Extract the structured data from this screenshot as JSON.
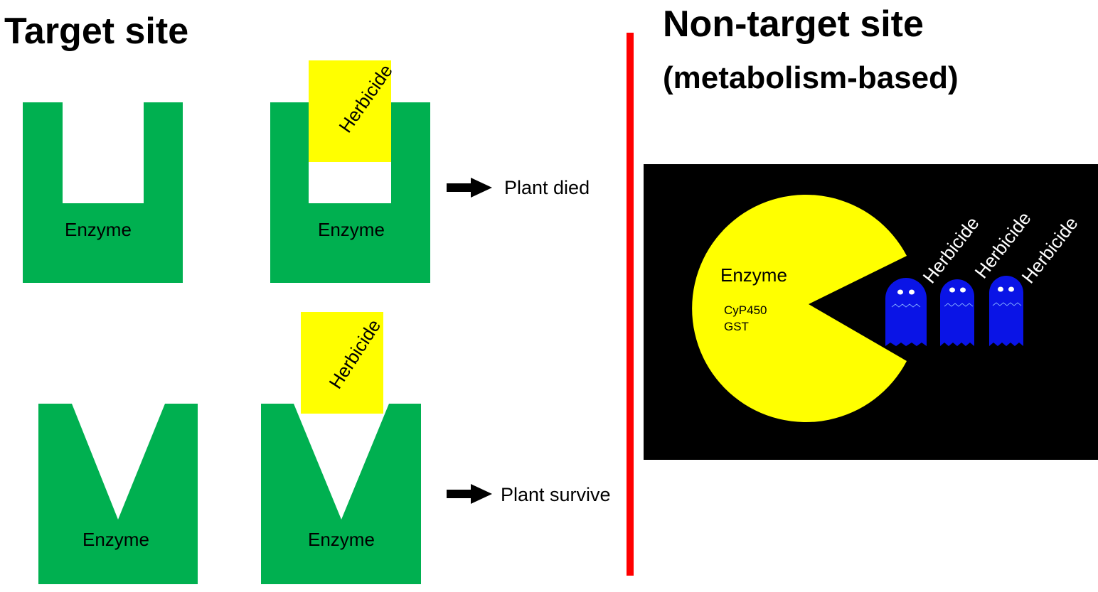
{
  "target_site": {
    "title": "Target site",
    "enzyme_label": "Enzyme",
    "herbicide_label": "Herbicide",
    "outcome_died": "Plant died",
    "outcome_survive": "Plant survive"
  },
  "non_target_site": {
    "title": "Non-target site",
    "subtitle": "(metabolism-based)",
    "enzyme_label": "Enzyme",
    "enzyme_types": [
      "CyP450",
      "GST"
    ],
    "herbicide_label": "Herbicide"
  },
  "colors": {
    "enzyme_green": "#00b050",
    "herbicide_yellow": "#ffff00",
    "divider_red": "#ff0000",
    "panel_black": "#000000",
    "ghost_blue": "#0a14e6",
    "arrow_black": "#000000"
  },
  "icons": {
    "arrow": "right-arrow-icon",
    "enzyme_pacman": "pacman-icon",
    "herbicide_ghost": "ghost-icon"
  }
}
